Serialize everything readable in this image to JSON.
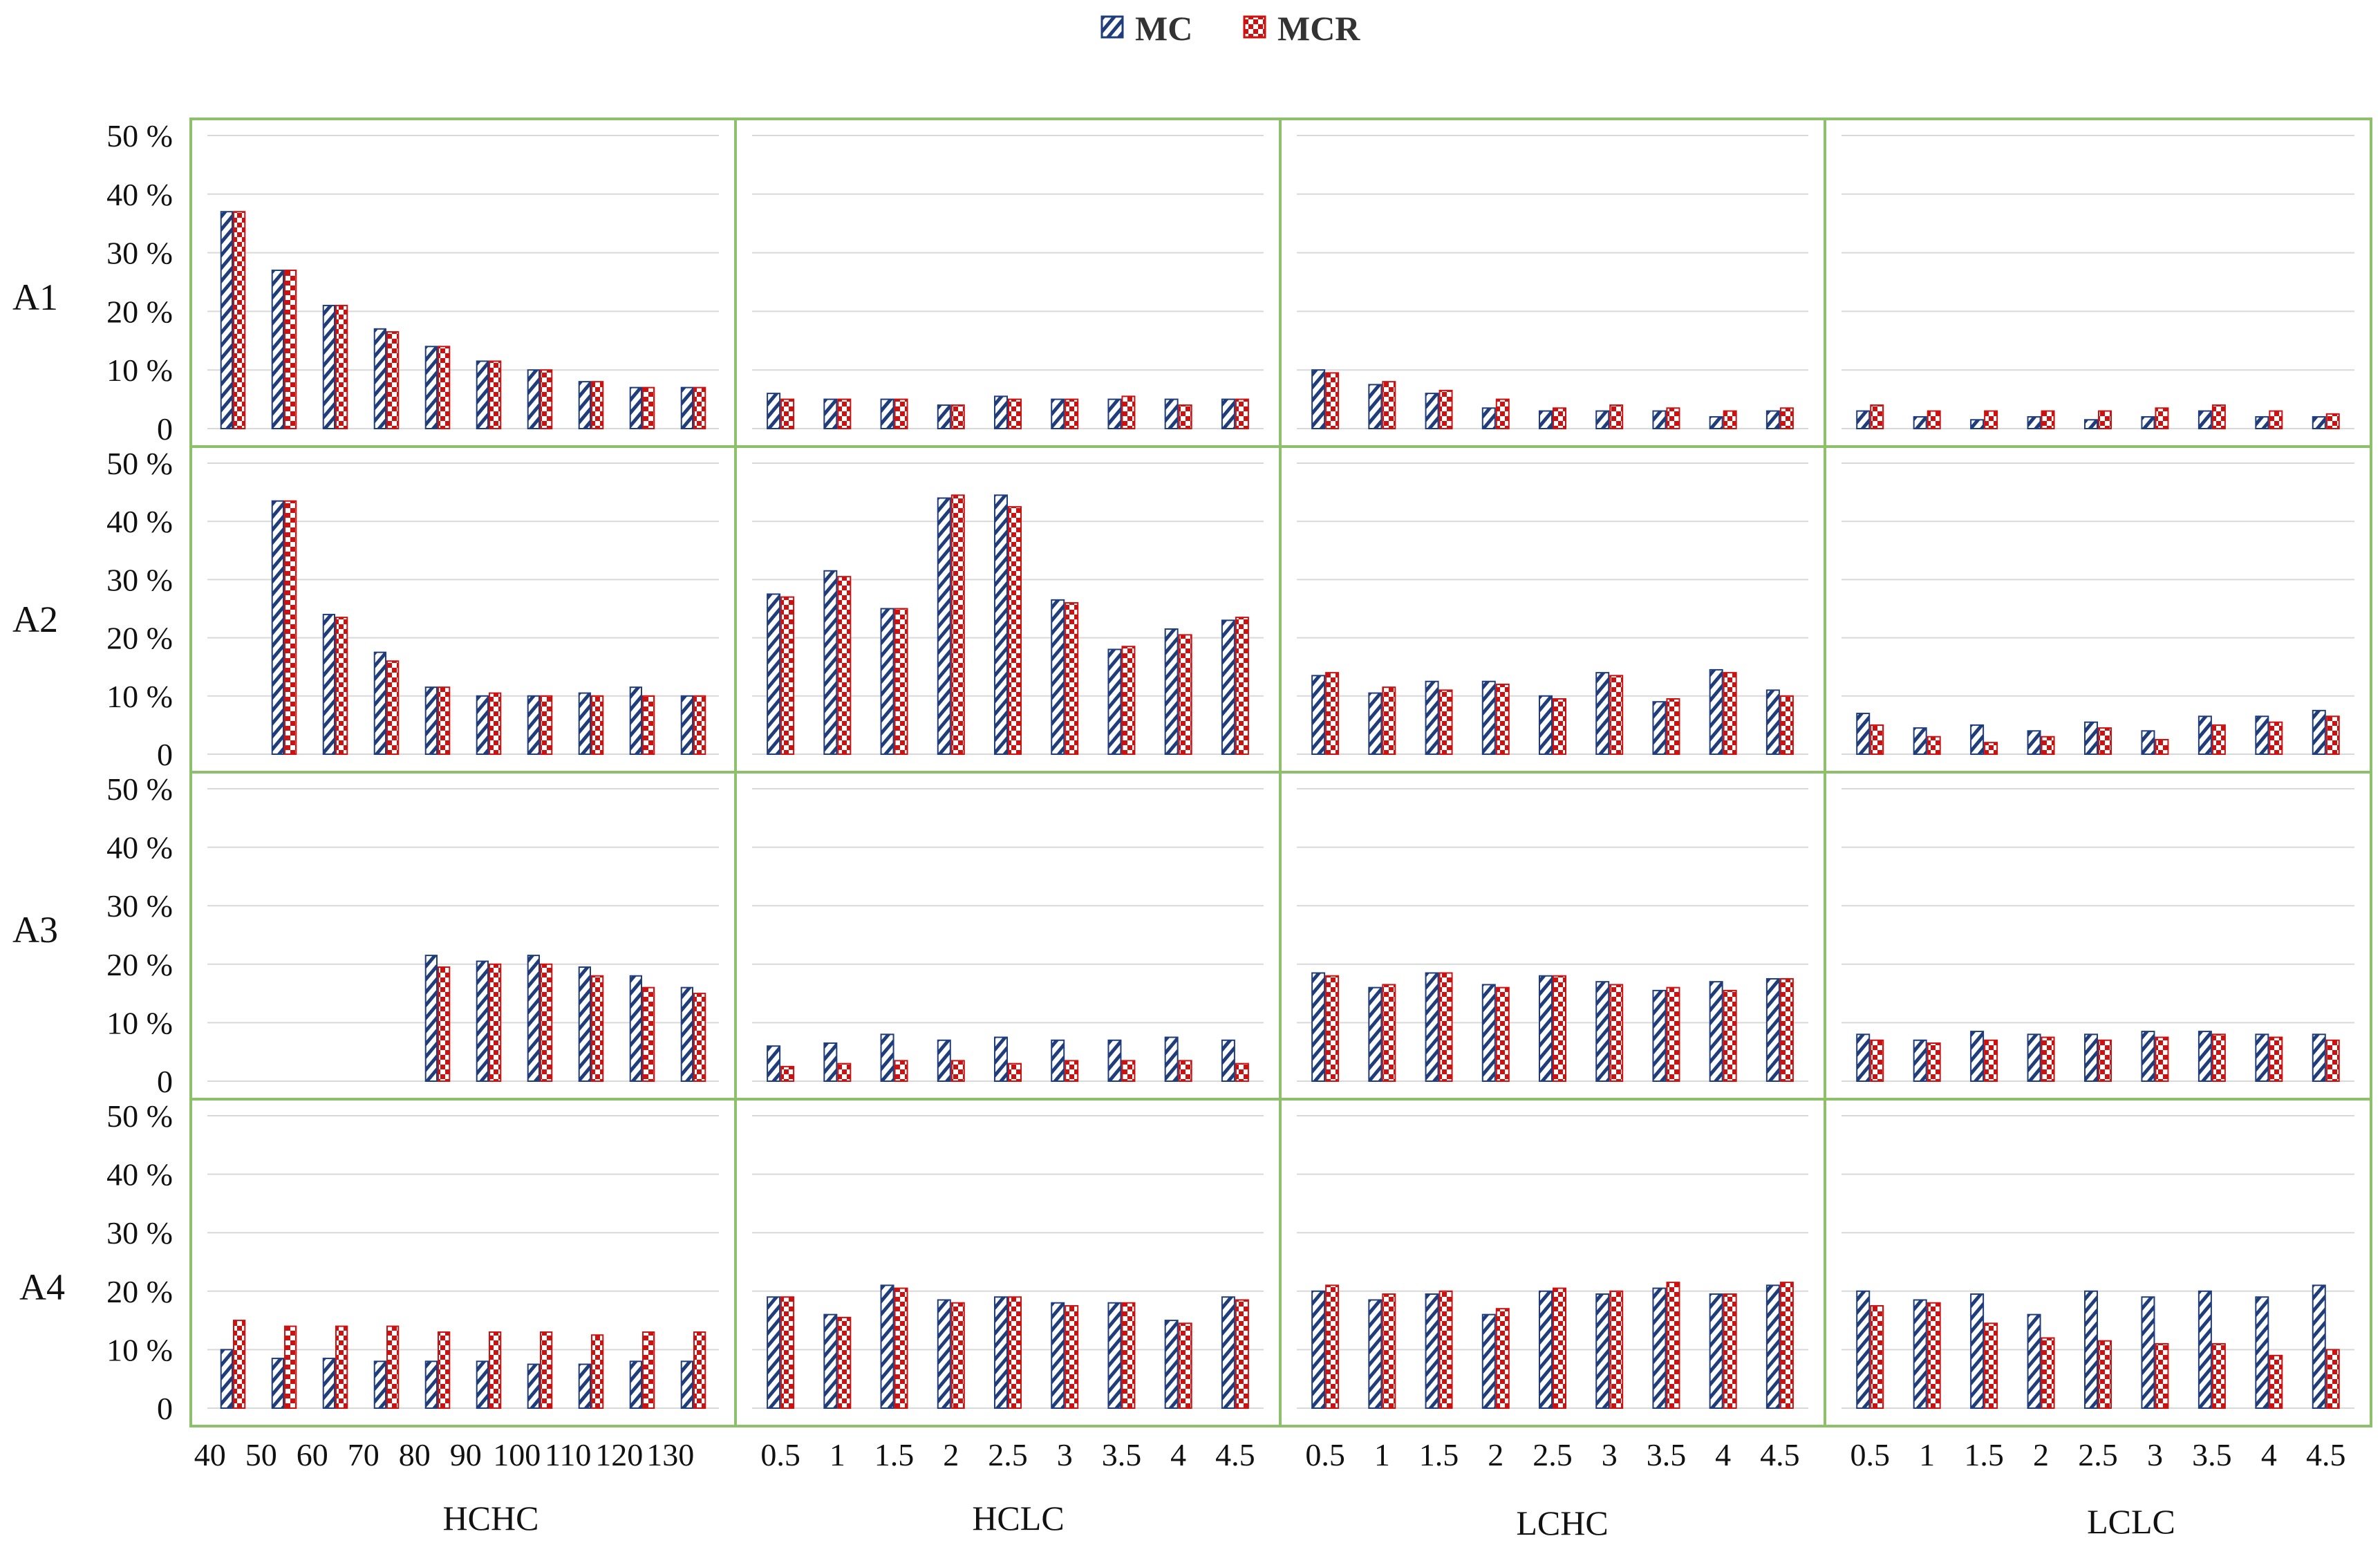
{
  "legend": [
    {
      "name": "MC",
      "color": "#1f3d7a",
      "pattern": "diagonal-stripes"
    },
    {
      "name": "MCR",
      "color": "#cc1111",
      "pattern": "checker"
    }
  ],
  "colors": {
    "panel_border": "#8dc06a",
    "gridline": "#d9d9d9",
    "MC": "#1f3d7a",
    "MCR": "#cc1111"
  },
  "chart_data": {
    "type": "bar",
    "layout": "4x4 small-multiples grid",
    "y_tick_labels": [
      "0",
      "10 %",
      "20 %",
      "30 %",
      "40 %",
      "50 %"
    ],
    "ylim": [
      0,
      50
    ],
    "grid": true,
    "legend_position": "top-center",
    "series_names": [
      "MC",
      "MCR"
    ],
    "rows": [
      "A1",
      "A2",
      "A3",
      "A4"
    ],
    "columns": [
      {
        "name": "HCHC",
        "tick_labels": [
          "40",
          "50",
          "60",
          "70",
          "80",
          "90",
          "100",
          "110",
          "120",
          "130"
        ]
      },
      {
        "name": "HCLC",
        "tick_labels": [
          "0.5",
          "1",
          "1.5",
          "2",
          "2.5",
          "3",
          "3.5",
          "4",
          "4.5"
        ]
      },
      {
        "name": "LCHC",
        "tick_labels": [
          "0.5",
          "1",
          "1.5",
          "2",
          "2.5",
          "3",
          "3.5",
          "4",
          "4.5"
        ]
      },
      {
        "name": "LCLC",
        "tick_labels": [
          "0.5",
          "1",
          "1.5",
          "2",
          "2.5",
          "3",
          "3.5",
          "4",
          "4.5"
        ]
      }
    ],
    "panels": [
      [
        {
          "MC": [
            37,
            27,
            21,
            17,
            14,
            11.5,
            10,
            8,
            7,
            7
          ],
          "MCR": [
            37,
            27,
            21,
            16.5,
            14,
            11.5,
            10,
            8,
            7,
            7
          ]
        },
        {
          "MC": [
            6,
            5,
            5,
            4,
            5.5,
            5,
            5,
            5,
            5
          ],
          "MCR": [
            5,
            5,
            5,
            4,
            5,
            5,
            5.5,
            4,
            5
          ]
        },
        {
          "MC": [
            10,
            7.5,
            6,
            3.5,
            3,
            3,
            3,
            2,
            3
          ],
          "MCR": [
            9.5,
            8,
            6.5,
            5,
            3.5,
            4,
            3.5,
            3,
            3.5
          ]
        },
        {
          "MC": [
            3,
            2,
            1.5,
            2,
            1.5,
            2,
            3,
            2,
            2
          ],
          "MCR": [
            4,
            3,
            3,
            3,
            3,
            3.5,
            4,
            3,
            2.5
          ]
        }
      ],
      [
        {
          "MC": [
            null,
            43.5,
            24,
            17.5,
            11.5,
            10,
            10,
            10.5,
            11.5,
            10
          ],
          "MCR": [
            null,
            43.5,
            23.5,
            16,
            11.5,
            10.5,
            10,
            10,
            10,
            10
          ]
        },
        {
          "MC": [
            27.5,
            31.5,
            25,
            44,
            44.5,
            26.5,
            18,
            21.5,
            23
          ],
          "MCR": [
            27,
            30.5,
            25,
            44.5,
            42.5,
            26,
            18.5,
            20.5,
            23.5
          ]
        },
        {
          "MC": [
            13.5,
            10.5,
            12.5,
            12.5,
            10,
            14,
            9,
            14.5,
            11
          ],
          "MCR": [
            14,
            11.5,
            11,
            12,
            9.5,
            13.5,
            9.5,
            14,
            10
          ]
        },
        {
          "MC": [
            7,
            4.5,
            5,
            4,
            5.5,
            4,
            6.5,
            6.5,
            7.5
          ],
          "MCR": [
            5,
            3,
            2,
            3,
            4.5,
            2.5,
            5,
            5.5,
            6.5
          ]
        }
      ],
      [
        {
          "MC": [
            null,
            null,
            null,
            null,
            21.5,
            20.5,
            21.5,
            19.5,
            18,
            16
          ],
          "MCR": [
            null,
            null,
            null,
            null,
            19.5,
            20,
            20,
            18,
            16,
            15
          ]
        },
        {
          "MC": [
            6,
            6.5,
            8,
            7,
            7.5,
            7,
            7,
            7.5,
            7
          ],
          "MCR": [
            2.5,
            3,
            3.5,
            3.5,
            3,
            3.5,
            3.5,
            3.5,
            3
          ]
        },
        {
          "MC": [
            18.5,
            16,
            18.5,
            16.5,
            18,
            17,
            15.5,
            17,
            17.5
          ],
          "MCR": [
            18,
            16.5,
            18.5,
            16,
            18,
            16.5,
            16,
            15.5,
            17.5
          ]
        },
        {
          "MC": [
            8,
            7,
            8.5,
            8,
            8,
            8.5,
            8.5,
            8,
            8
          ],
          "MCR": [
            7,
            6.5,
            7,
            7.5,
            7,
            7.5,
            8,
            7.5,
            7
          ]
        }
      ],
      [
        {
          "MC": [
            10,
            8.5,
            8.5,
            8,
            8,
            8,
            7.5,
            7.5,
            8,
            8
          ],
          "MCR": [
            15,
            14,
            14,
            14,
            13,
            13,
            13,
            12.5,
            13,
            13
          ]
        },
        {
          "MC": [
            19,
            16,
            21,
            18.5,
            19,
            18,
            18,
            15,
            19
          ],
          "MCR": [
            19,
            15.5,
            20.5,
            18,
            19,
            17.5,
            18,
            14.5,
            18.5
          ]
        },
        {
          "MC": [
            20,
            18.5,
            19.5,
            16,
            20,
            19.5,
            20.5,
            19.5,
            21
          ],
          "MCR": [
            21,
            19.5,
            20,
            17,
            20.5,
            20,
            21.5,
            19.5,
            21.5
          ]
        },
        {
          "MC": [
            20,
            18.5,
            19.5,
            16,
            20,
            19,
            20,
            19,
            21
          ],
          "MCR": [
            17.5,
            18,
            14.5,
            12,
            11.5,
            11,
            11,
            9,
            10
          ]
        }
      ]
    ]
  }
}
